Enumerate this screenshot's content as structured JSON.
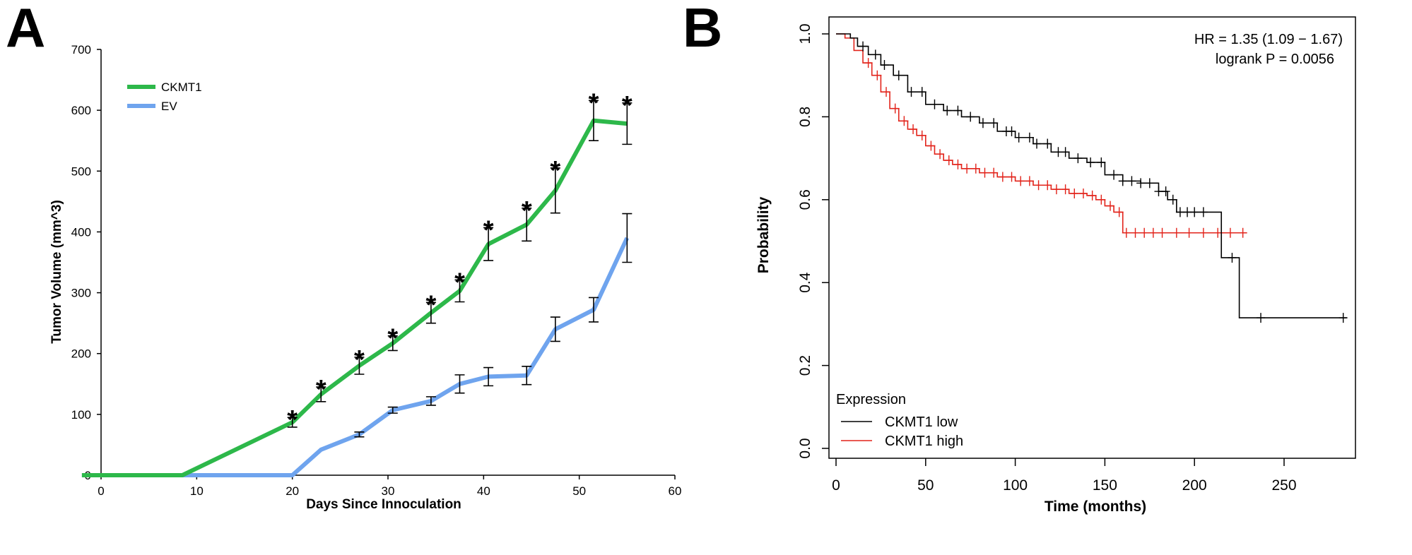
{
  "panels": {
    "a_label": "A",
    "b_label": "B"
  },
  "chart_data": [
    {
      "type": "line",
      "xlabel": "Days Since Innoculation",
      "ylabel": "Tumor Volume (mm^3)",
      "xlim": [
        0,
        60
      ],
      "ylim": [
        0,
        700
      ],
      "xticks": [
        "0",
        "10",
        "20",
        "30",
        "40",
        "50",
        "60"
      ],
      "yticks": [
        "0",
        "100",
        "200",
        "300",
        "400",
        "500",
        "600",
        "700"
      ],
      "legend_position": "top-left",
      "significance_marker": "*",
      "series": [
        {
          "name": "CKMT1",
          "color": "#2db84a",
          "x": [
            -2,
            8.5,
            20,
            23,
            27,
            30.5,
            34.5,
            37.5,
            40.5,
            44.5,
            47.5,
            51.5,
            55
          ],
          "y": [
            0,
            0,
            87,
            133,
            180,
            217,
            267,
            303,
            380,
            412,
            468,
            583,
            578
          ],
          "err": [
            null,
            null,
            8,
            12,
            14,
            12,
            17,
            18,
            27,
            27,
            37,
            33,
            34
          ],
          "sig": [
            false,
            false,
            true,
            true,
            true,
            true,
            true,
            true,
            true,
            true,
            true,
            true,
            true
          ]
        },
        {
          "name": "EV",
          "color": "#6fa4ee",
          "x": [
            -2,
            8.5,
            20,
            23,
            27,
            30.5,
            34.5,
            37.5,
            40.5,
            44.5,
            47.5,
            51.5,
            55
          ],
          "y": [
            0,
            0,
            0,
            42,
            67,
            107,
            122,
            150,
            162,
            164,
            240,
            272,
            390
          ],
          "err": [
            null,
            null,
            null,
            null,
            4,
            5,
            7,
            15,
            15,
            15,
            20,
            20,
            40
          ]
        }
      ]
    },
    {
      "type": "line",
      "subtype": "kaplan-meier",
      "xlabel": "Time (months)",
      "ylabel": "Probability",
      "xlim": [
        0,
        295
      ],
      "ylim": [
        0,
        1.0
      ],
      "xticks": [
        "0",
        "50",
        "100",
        "150",
        "200",
        "250"
      ],
      "yticks": [
        "0.0",
        "0.2",
        "0.4",
        "0.6",
        "0.8",
        "1.0"
      ],
      "annotations": {
        "hr": "HR = 1.35 (1.09 − 1.67)",
        "logrank": "logrank P = 0.0056"
      },
      "legend_title": "Expression",
      "legend_position": "bottom-left",
      "series": [
        {
          "name": "CKMT1 low",
          "color": "#000000",
          "points": [
            [
              0,
              1.0
            ],
            [
              8,
              0.99
            ],
            [
              12,
              0.97
            ],
            [
              18,
              0.95
            ],
            [
              25,
              0.925
            ],
            [
              32,
              0.9
            ],
            [
              40,
              0.86
            ],
            [
              50,
              0.83
            ],
            [
              60,
              0.815
            ],
            [
              70,
              0.8
            ],
            [
              80,
              0.785
            ],
            [
              90,
              0.765
            ],
            [
              100,
              0.75
            ],
            [
              110,
              0.735
            ],
            [
              120,
              0.715
            ],
            [
              130,
              0.7
            ],
            [
              140,
              0.69
            ],
            [
              150,
              0.66
            ],
            [
              160,
              0.645
            ],
            [
              170,
              0.64
            ],
            [
              180,
              0.62
            ],
            [
              185,
              0.6
            ],
            [
              190,
              0.57
            ],
            [
              215,
              0.57
            ],
            [
              215,
              0.46
            ],
            [
              225,
              0.46
            ],
            [
              225,
              0.315
            ],
            [
              285,
              0.315
            ]
          ],
          "censor": [
            15,
            22,
            27,
            35,
            42,
            48,
            55,
            62,
            68,
            75,
            82,
            88,
            95,
            98,
            102,
            108,
            112,
            118,
            124,
            128,
            135,
            142,
            148,
            155,
            160,
            165,
            170,
            175,
            180,
            184,
            188,
            192,
            196,
            200,
            205,
            221,
            237,
            283
          ]
        },
        {
          "name": "CKMT1 high",
          "color": "#e2231a",
          "points": [
            [
              0,
              1.0
            ],
            [
              5,
              0.99
            ],
            [
              10,
              0.96
            ],
            [
              15,
              0.93
            ],
            [
              20,
              0.9
            ],
            [
              25,
              0.86
            ],
            [
              30,
              0.82
            ],
            [
              35,
              0.79
            ],
            [
              40,
              0.77
            ],
            [
              45,
              0.755
            ],
            [
              50,
              0.73
            ],
            [
              55,
              0.71
            ],
            [
              60,
              0.695
            ],
            [
              65,
              0.685
            ],
            [
              70,
              0.675
            ],
            [
              80,
              0.665
            ],
            [
              90,
              0.655
            ],
            [
              100,
              0.645
            ],
            [
              110,
              0.635
            ],
            [
              120,
              0.625
            ],
            [
              130,
              0.615
            ],
            [
              140,
              0.61
            ],
            [
              145,
              0.6
            ],
            [
              150,
              0.585
            ],
            [
              155,
              0.57
            ],
            [
              160,
              0.52
            ],
            [
              228,
              0.52
            ]
          ],
          "censor": [
            18,
            23,
            28,
            33,
            38,
            43,
            48,
            53,
            58,
            63,
            68,
            73,
            78,
            83,
            88,
            93,
            98,
            103,
            108,
            113,
            118,
            123,
            128,
            133,
            138,
            143,
            148,
            153,
            158,
            162,
            167,
            172,
            177,
            182,
            190,
            197,
            205,
            213,
            220,
            227
          ]
        }
      ]
    }
  ]
}
